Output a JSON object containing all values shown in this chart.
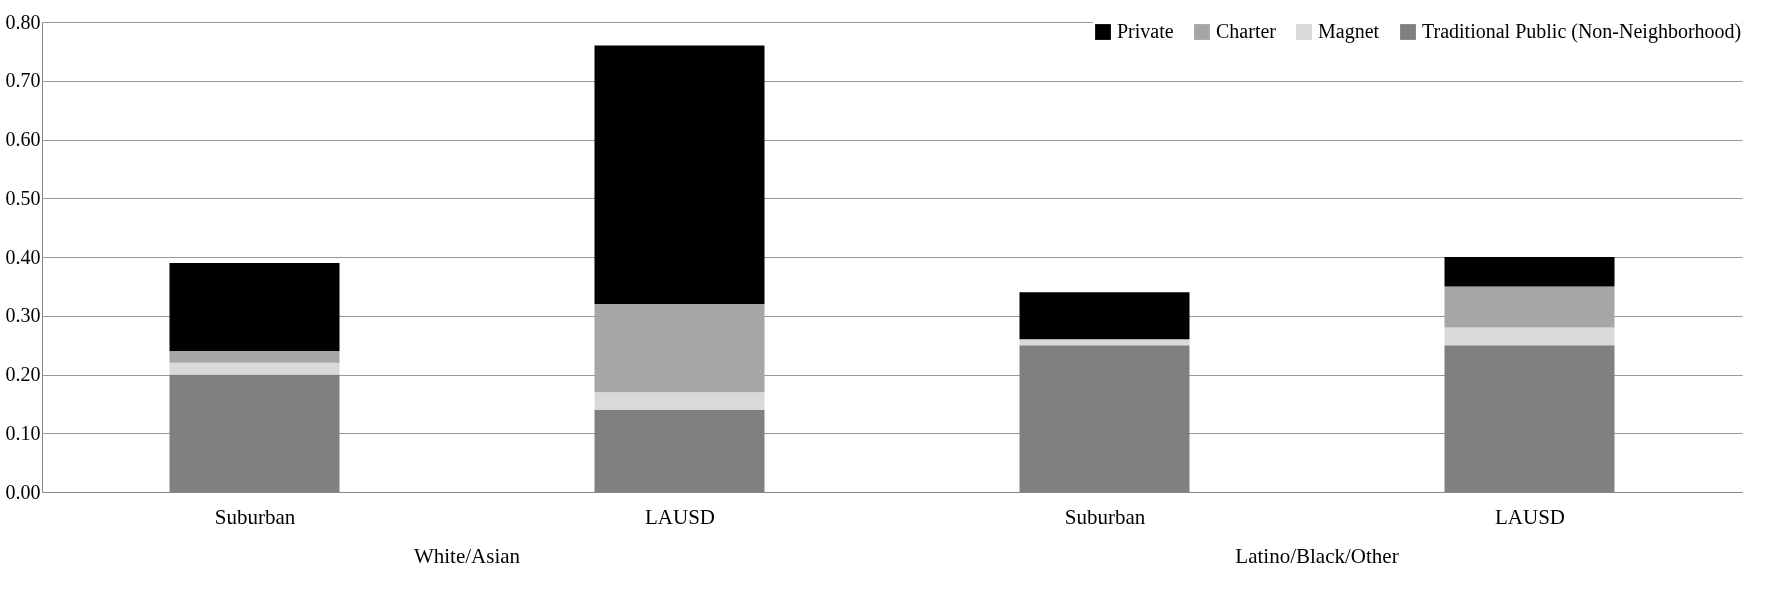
{
  "chart_data": {
    "type": "bar",
    "stacked": true,
    "categories": [
      "Suburban",
      "LAUSD",
      "Suburban",
      "LAUSD"
    ],
    "series": [
      {
        "name": "Traditional Public (Non-Neighborhood)",
        "color": "#808080",
        "values": [
          0.2,
          0.14,
          0.25,
          0.25
        ]
      },
      {
        "name": "Magnet",
        "color": "#d9d9d9",
        "values": [
          0.02,
          0.03,
          0.01,
          0.03
        ]
      },
      {
        "name": "Charter",
        "color": "#a6a6a6",
        "values": [
          0.02,
          0.15,
          0,
          0.07
        ]
      },
      {
        "name": "Private",
        "color": "#000000",
        "values": [
          0.15,
          0.44,
          0.08,
          0.05
        ]
      }
    ],
    "annotations": [
      "White/Asian",
      "Latino/Black/Other"
    ],
    "ylim": [
      0,
      0.8
    ],
    "yticks": [
      {
        "value": 0,
        "label": "0.00"
      },
      {
        "value": 0.1,
        "label": "0.10"
      },
      {
        "value": 0.2,
        "label": "0.20"
      },
      {
        "value": 0.3,
        "label": "0.30"
      },
      {
        "value": 0.4,
        "label": "0.40"
      },
      {
        "value": 0.5,
        "label": "0.50"
      },
      {
        "value": 0.6,
        "label": "0.60"
      },
      {
        "value": 0.7,
        "label": "0.70"
      },
      {
        "value": 0.8,
        "label": "0.80"
      }
    ],
    "grid": "y",
    "legend": "top right"
  }
}
